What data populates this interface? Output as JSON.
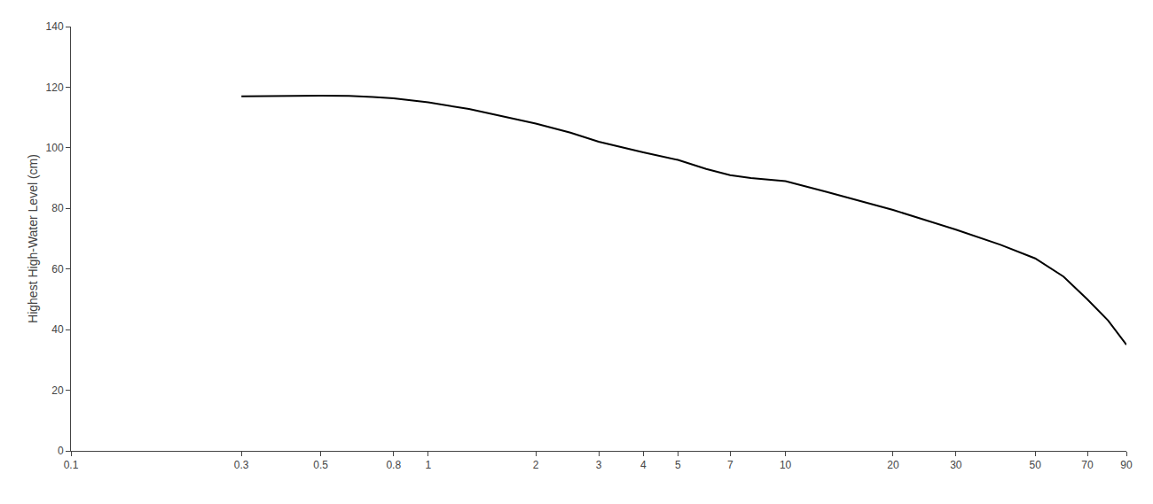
{
  "chart_data": {
    "type": "line",
    "ylabel": "Highest High-Water Level (cm)",
    "x": [
      0.3,
      0.35,
      0.4,
      0.5,
      0.6,
      0.7,
      0.8,
      1.0,
      1.3,
      1.6,
      2.0,
      2.5,
      3.0,
      4.0,
      5.0,
      6.0,
      7.0,
      8.0,
      10.0,
      13.0,
      20.0,
      30.0,
      40.0,
      50.0,
      60.0,
      70.0,
      80.0,
      90.0
    ],
    "values": [
      117,
      117.1,
      117.2,
      117.2,
      117.1,
      116.8,
      116.3,
      115.0,
      112.8,
      110.5,
      108.0,
      105.0,
      102.0,
      98.5,
      96.0,
      93.0,
      91.0,
      90.0,
      89.0,
      85.5,
      79.5,
      73.0,
      68.0,
      63.5,
      57.5,
      50.0,
      43.0,
      35.0
    ],
    "color": "#000000",
    "log": "x",
    "xlim": [
      0.1,
      90
    ],
    "xticks": [
      0.1,
      0.3,
      0.5,
      0.8,
      1,
      2,
      3,
      4,
      5,
      7,
      10,
      20,
      30,
      50,
      70,
      90
    ],
    "ylim": [
      0,
      140
    ],
    "yticks": [
      0,
      20,
      40,
      60,
      80,
      100,
      120,
      140
    ],
    "grid": false
  }
}
